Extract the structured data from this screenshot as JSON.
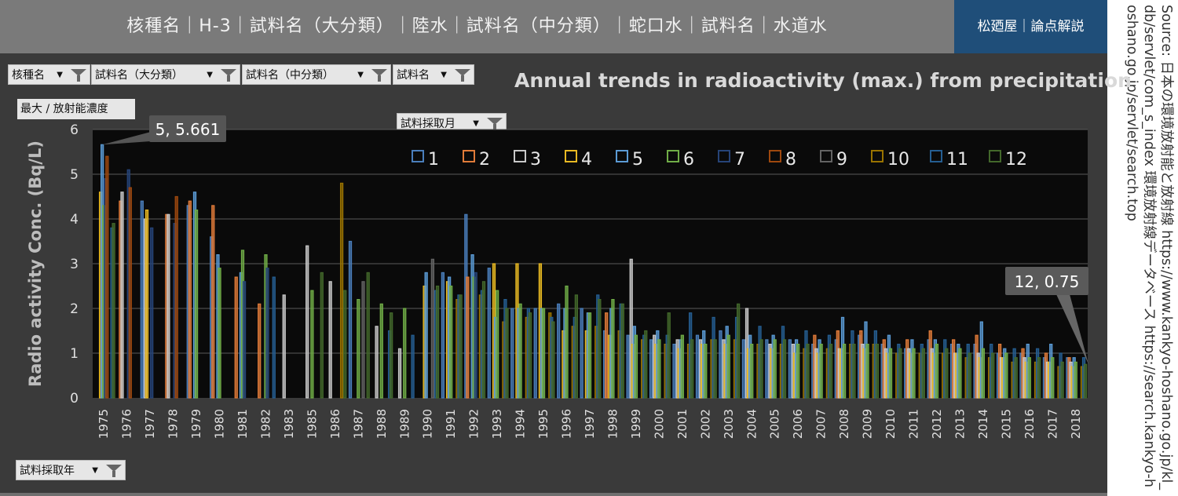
{
  "header": {
    "title": "核種名｜H-3｜試料名（大分類）｜陸水｜試料名（中分類）｜蛇口水｜試料名｜水道水",
    "brand": "松廼屋｜論点解説"
  },
  "source_text": "Source: 日本の環境放射能と放射線 https://www.kankyo-hoshano.go.jp/kl_db/servlet/com_s_index 環境放射線データベース https://search.kankyo-hoshano.go.jp/servlet/search.top",
  "filters": {
    "nuclide": "核種名",
    "major": "試料名（大分類）",
    "middle": "試料名（中分類）",
    "sample": "試料名",
    "month": "試料採取月",
    "year": "試料採取年"
  },
  "value_box": "最大 / 放射能濃度",
  "colors": {
    "panel": "#3a3a3a",
    "plot_bg": "#0a0a0a",
    "grid": "#5a5a5a",
    "axis_text": "#e0e0e0"
  },
  "chart_data": {
    "type": "bar",
    "title": "Annual trends in radioactivity (max.) from precipitation",
    "ylabel": "Radio activity Conc. (Bq/L)",
    "xlabel": "",
    "ylim": [
      0,
      6
    ],
    "yticks": [
      0,
      1,
      2,
      3,
      4,
      5,
      6
    ],
    "grid": true,
    "legend_position": "top-right",
    "series": [
      {
        "name": "1",
        "color": "#4a7ebb"
      },
      {
        "name": "2",
        "color": "#e07b39"
      },
      {
        "name": "3",
        "color": "#c8c8c8"
      },
      {
        "name": "4",
        "color": "#e8b923"
      },
      {
        "name": "5",
        "color": "#5b9bd5"
      },
      {
        "name": "6",
        "color": "#70ad47"
      },
      {
        "name": "7",
        "color": "#264478"
      },
      {
        "name": "8",
        "color": "#9e480e"
      },
      {
        "name": "9",
        "color": "#636363"
      },
      {
        "name": "10",
        "color": "#997300"
      },
      {
        "name": "11",
        "color": "#255e91"
      },
      {
        "name": "12",
        "color": "#43682b"
      }
    ],
    "years": [
      {
        "year": "1975",
        "values": [
          null,
          null,
          null,
          4.6,
          5.661,
          4.3,
          4.9,
          5.4,
          null,
          null,
          3.8,
          3.9
        ]
      },
      {
        "year": "1976",
        "values": [
          null,
          4.4,
          4.6,
          null,
          null,
          null,
          5.1,
          4.7,
          null,
          null,
          null,
          null
        ]
      },
      {
        "year": "1977",
        "values": [
          4.4,
          null,
          4.0,
          4.2,
          null,
          null,
          3.8,
          null,
          null,
          null,
          null,
          null
        ]
      },
      {
        "year": "1978",
        "values": [
          null,
          4.1,
          4.1,
          null,
          null,
          null,
          3.9,
          4.5,
          null,
          null,
          null,
          null
        ]
      },
      {
        "year": "1979",
        "values": [
          4.3,
          4.4,
          null,
          null,
          4.6,
          4.2,
          null,
          null,
          null,
          null,
          null,
          null
        ]
      },
      {
        "year": "1980",
        "values": [
          3.6,
          4.3,
          null,
          null,
          3.2,
          2.9,
          null,
          null,
          null,
          null,
          null,
          null
        ]
      },
      {
        "year": "1981",
        "values": [
          null,
          2.7,
          null,
          null,
          2.8,
          3.3,
          2.6,
          null,
          null,
          null,
          null,
          null
        ]
      },
      {
        "year": "1982",
        "values": [
          null,
          2.1,
          null,
          null,
          null,
          3.2,
          2.9,
          null,
          null,
          null,
          2.7,
          null
        ]
      },
      {
        "year": "1983",
        "values": [
          null,
          null,
          2.3,
          null,
          null,
          null,
          null,
          null,
          null,
          null,
          null,
          null
        ]
      },
      {
        "year": "1985",
        "values": [
          null,
          null,
          3.4,
          null,
          null,
          2.4,
          null,
          null,
          null,
          null,
          null,
          2.8
        ]
      },
      {
        "year": "1986",
        "values": [
          null,
          null,
          2.6,
          null,
          null,
          null,
          null,
          null,
          null,
          4.8,
          null,
          2.4
        ]
      },
      {
        "year": "1987",
        "values": [
          3.5,
          null,
          null,
          null,
          null,
          2.2,
          null,
          null,
          2.6,
          null,
          null,
          2.8
        ]
      },
      {
        "year": "1988",
        "values": [
          null,
          null,
          1.6,
          null,
          null,
          2.1,
          null,
          null,
          null,
          null,
          1.5,
          1.9
        ]
      },
      {
        "year": "1989",
        "values": [
          null,
          null,
          1.1,
          null,
          null,
          2.0,
          null,
          null,
          null,
          null,
          1.4,
          null
        ]
      },
      {
        "year": "1990",
        "values": [
          null,
          null,
          null,
          2.5,
          2.8,
          null,
          null,
          null,
          3.1,
          null,
          2.4,
          2.5
        ]
      },
      {
        "year": "1991",
        "values": [
          2.8,
          null,
          null,
          2.6,
          2.7,
          2.5,
          null,
          null,
          null,
          2.2,
          2.3,
          2.3
        ]
      },
      {
        "year": "1992",
        "values": [
          4.1,
          2.7,
          null,
          null,
          3.2,
          2.7,
          2.8,
          null,
          null,
          2.3,
          2.4,
          2.6
        ]
      },
      {
        "year": "1993",
        "values": [
          2.9,
          null,
          null,
          3.0,
          1.8,
          2.4,
          null,
          null,
          null,
          1.7,
          2.2,
          2.0
        ]
      },
      {
        "year": "1994",
        "values": [
          2.0,
          null,
          null,
          3.0,
          2.0,
          2.1,
          null,
          null,
          null,
          1.8,
          2.0,
          1.9
        ]
      },
      {
        "year": "1995",
        "values": [
          2.0,
          null,
          null,
          3.0,
          2.0,
          2.0,
          null,
          null,
          null,
          1.9,
          1.8,
          1.7
        ]
      },
      {
        "year": "1996",
        "values": [
          2.1,
          null,
          null,
          1.5,
          2.0,
          2.5,
          null,
          null,
          null,
          1.6,
          1.8,
          2.3
        ]
      },
      {
        "year": "1997",
        "values": [
          2.0,
          null,
          null,
          1.5,
          1.9,
          1.9,
          null,
          null,
          null,
          1.6,
          2.3,
          2.2
        ]
      },
      {
        "year": "1998",
        "values": [
          1.5,
          1.9,
          null,
          1.4,
          2.0,
          2.2,
          null,
          null,
          null,
          1.5,
          2.1,
          2.1
        ]
      },
      {
        "year": "1999",
        "values": [
          1.4,
          null,
          3.1,
          1.2,
          1.6,
          1.4,
          null,
          null,
          null,
          1.3,
          1.4,
          1.5
        ]
      },
      {
        "year": "2000",
        "values": [
          1.3,
          null,
          1.4,
          1.2,
          1.5,
          1.3,
          null,
          null,
          null,
          1.2,
          1.4,
          1.9
        ]
      },
      {
        "year": "2001",
        "values": [
          1.2,
          null,
          1.3,
          1.1,
          1.3,
          1.4,
          null,
          null,
          null,
          1.2,
          1.9,
          1.3
        ]
      },
      {
        "year": "2002",
        "values": [
          1.4,
          null,
          1.3,
          1.2,
          1.5,
          1.2,
          null,
          null,
          null,
          1.3,
          1.8,
          1.3
        ]
      },
      {
        "year": "2003",
        "values": [
          1.5,
          null,
          1.3,
          1.2,
          1.6,
          1.4,
          null,
          null,
          null,
          1.3,
          1.8,
          2.1
        ]
      },
      {
        "year": "2004",
        "values": [
          1.3,
          null,
          2.0,
          1.1,
          1.4,
          1.2,
          null,
          null,
          null,
          1.2,
          1.6,
          1.3
        ]
      },
      {
        "year": "2005",
        "values": [
          1.3,
          null,
          1.2,
          1.1,
          1.4,
          1.3,
          null,
          null,
          null,
          1.2,
          1.6,
          1.3
        ]
      },
      {
        "year": "2006",
        "values": [
          1.3,
          null,
          1.2,
          1.0,
          1.3,
          1.2,
          null,
          null,
          null,
          1.1,
          1.5,
          1.2
        ]
      },
      {
        "year": "2007",
        "values": [
          1.2,
          1.4,
          1.1,
          1.0,
          1.3,
          1.2,
          null,
          null,
          null,
          1.1,
          1.4,
          1.2
        ]
      },
      {
        "year": "2008",
        "values": [
          1.3,
          1.5,
          1.1,
          1.1,
          1.8,
          1.2,
          null,
          null,
          null,
          1.2,
          1.5,
          1.2
        ]
      },
      {
        "year": "2009",
        "values": [
          1.4,
          1.5,
          1.2,
          1.1,
          1.7,
          1.2,
          null,
          null,
          null,
          1.2,
          1.5,
          1.2
        ]
      },
      {
        "year": "2010",
        "values": [
          1.2,
          1.3,
          1.1,
          1.0,
          1.4,
          1.1,
          null,
          null,
          null,
          1.0,
          1.2,
          1.1
        ]
      },
      {
        "year": "2011",
        "values": [
          1.1,
          1.3,
          1.1,
          1.0,
          1.3,
          1.1,
          null,
          null,
          null,
          1.0,
          1.2,
          1.1
        ]
      },
      {
        "year": "2012",
        "values": [
          1.3,
          1.5,
          1.1,
          1.0,
          1.3,
          1.2,
          null,
          null,
          null,
          1.0,
          1.3,
          1.1
        ]
      },
      {
        "year": "2013",
        "values": [
          1.2,
          1.3,
          1.0,
          1.0,
          1.2,
          1.1,
          null,
          null,
          null,
          0.9,
          1.2,
          1.0
        ]
      },
      {
        "year": "2014",
        "values": [
          1.2,
          1.4,
          1.0,
          0.9,
          1.7,
          1.1,
          null,
          null,
          null,
          0.9,
          1.2,
          1.0
        ]
      },
      {
        "year": "2015",
        "values": [
          1.0,
          1.2,
          0.9,
          0.9,
          1.1,
          1.0,
          null,
          null,
          null,
          0.8,
          1.1,
          0.9
        ]
      },
      {
        "year": "2016",
        "values": [
          1.0,
          1.1,
          0.9,
          0.8,
          1.2,
          0.9,
          null,
          null,
          null,
          0.8,
          1.1,
          0.9
        ]
      },
      {
        "year": "2017",
        "values": [
          0.9,
          1.0,
          0.8,
          0.8,
          1.2,
          0.9,
          null,
          null,
          null,
          0.7,
          1.0,
          0.8
        ]
      },
      {
        "year": "2018",
        "values": [
          0.9,
          0.9,
          0.8,
          0.7,
          0.9,
          0.8,
          null,
          null,
          null,
          0.7,
          0.9,
          0.75
        ]
      }
    ],
    "annotations": [
      {
        "text": "5, 5.661",
        "year": "1975",
        "month": 5
      },
      {
        "text": "12, 0.75",
        "year": "2018",
        "month": 12
      }
    ]
  }
}
